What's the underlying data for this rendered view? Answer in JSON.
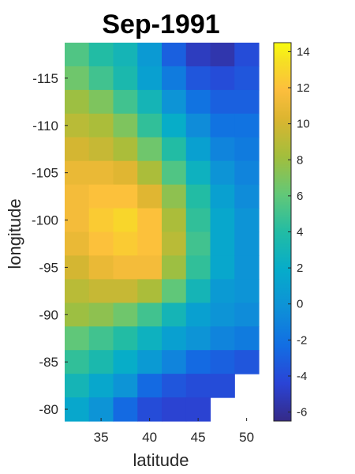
{
  "chart_data": {
    "type": "heatmap",
    "title": "Sep-1991",
    "xlabel": "latitude",
    "ylabel": "longitude",
    "x_ticks": [
      "35",
      "40",
      "45",
      "50"
    ],
    "y_ticks": [
      "-115",
      "-110",
      "-105",
      "-100",
      "-95",
      "-90",
      "-85",
      "-80"
    ],
    "colorbar_ticks": [
      "14",
      "12",
      "10",
      "8",
      "6",
      "4",
      "2",
      "0",
      "-2",
      "-4",
      "-6"
    ],
    "colorbar_range": [
      -6.5,
      14.5
    ],
    "colormap": "parula",
    "grid": false,
    "x_centers": [
      32.5,
      35,
      37.5,
      40,
      42.5,
      45,
      47.5,
      50
    ],
    "y_centers": [
      -117.5,
      -115,
      -112.5,
      -110,
      -107.5,
      -105,
      -102.5,
      -100,
      -97.5,
      -95,
      -92.5,
      -90,
      -87.5,
      -85,
      -82.5,
      -80
    ],
    "values": [
      [
        5.5,
        4.0,
        3.0,
        0.5,
        -3.0,
        -5.0,
        -5.5,
        -4.0
      ],
      [
        6.5,
        5.0,
        3.5,
        1.0,
        -1.5,
        -3.5,
        -4.0,
        -3.5
      ],
      [
        8.0,
        7.0,
        5.0,
        3.0,
        0.0,
        -2.0,
        -3.0,
        -3.0
      ],
      [
        9.0,
        8.5,
        7.0,
        4.5,
        2.0,
        -0.5,
        -2.0,
        -2.0
      ],
      [
        10.0,
        9.5,
        8.5,
        6.5,
        4.0,
        1.0,
        -1.0,
        -1.5
      ],
      [
        11.0,
        11.0,
        10.5,
        8.5,
        5.5,
        2.5,
        0.0,
        -1.0
      ],
      [
        11.5,
        12.0,
        12.0,
        10.5,
        7.5,
        4.0,
        1.0,
        -0.5
      ],
      [
        11.5,
        12.5,
        13.0,
        12.0,
        8.5,
        4.5,
        1.5,
        0.0
      ],
      [
        11.0,
        12.0,
        12.5,
        12.0,
        9.0,
        5.0,
        1.5,
        0.0
      ],
      [
        10.0,
        11.0,
        11.5,
        11.5,
        8.0,
        4.5,
        1.5,
        0.0
      ],
      [
        9.0,
        9.5,
        9.5,
        8.5,
        6.0,
        3.0,
        0.5,
        0.0
      ],
      [
        8.0,
        7.5,
        6.5,
        5.0,
        3.0,
        1.0,
        0.0,
        -0.5
      ],
      [
        6.0,
        5.0,
        4.0,
        2.5,
        1.0,
        0.0,
        -1.0,
        -1.5
      ],
      [
        4.5,
        3.5,
        2.0,
        0.5,
        -1.0,
        -2.5,
        -3.0,
        -3.5
      ],
      [
        3.0,
        1.5,
        0.0,
        -2.5,
        -3.5,
        -4.0,
        -4.0,
        null
      ],
      [
        1.5,
        0.0,
        -2.5,
        -4.0,
        -4.5,
        -4.5,
        null,
        null
      ]
    ]
  }
}
